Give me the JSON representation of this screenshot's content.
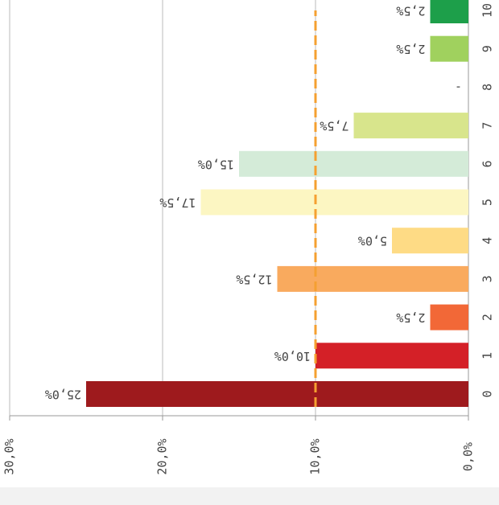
{
  "chart_data": {
    "type": "bar",
    "orientation": "horizontal",
    "rotated": 180,
    "categories": [
      "0",
      "1",
      "2",
      "3",
      "4",
      "5",
      "6",
      "7",
      "8",
      "9",
      "10"
    ],
    "values": [
      25,
      10,
      2.5,
      12.5,
      5,
      17.5,
      15,
      7.5,
      null,
      2.5,
      2.5
    ],
    "value_labels": [
      "25,0%",
      "10,0%",
      "2,5%",
      "12,5%",
      "5,0%",
      "17,5%",
      "15,0%",
      "7,5%",
      "-",
      "2,5%",
      "2,5%"
    ],
    "colors": [
      "#9e1a1d",
      "#d42027",
      "#f26837",
      "#f9aa5e",
      "#fedb85",
      "#fcf6c2",
      "#d4ebd8",
      "#d8e58c",
      "#cccccc",
      "#a0d15e",
      "#1d9f4a"
    ],
    "xlim": [
      0,
      30
    ],
    "xticks": [
      {
        "value": 0,
        "label": "0,0%"
      },
      {
        "value": 10,
        "label": "10,0%"
      },
      {
        "value": 20,
        "label": "20,0%"
      },
      {
        "value": 30,
        "label": "30,0%"
      }
    ],
    "grid": true,
    "reference_line": {
      "value": 10,
      "color": "#f5a031"
    }
  }
}
